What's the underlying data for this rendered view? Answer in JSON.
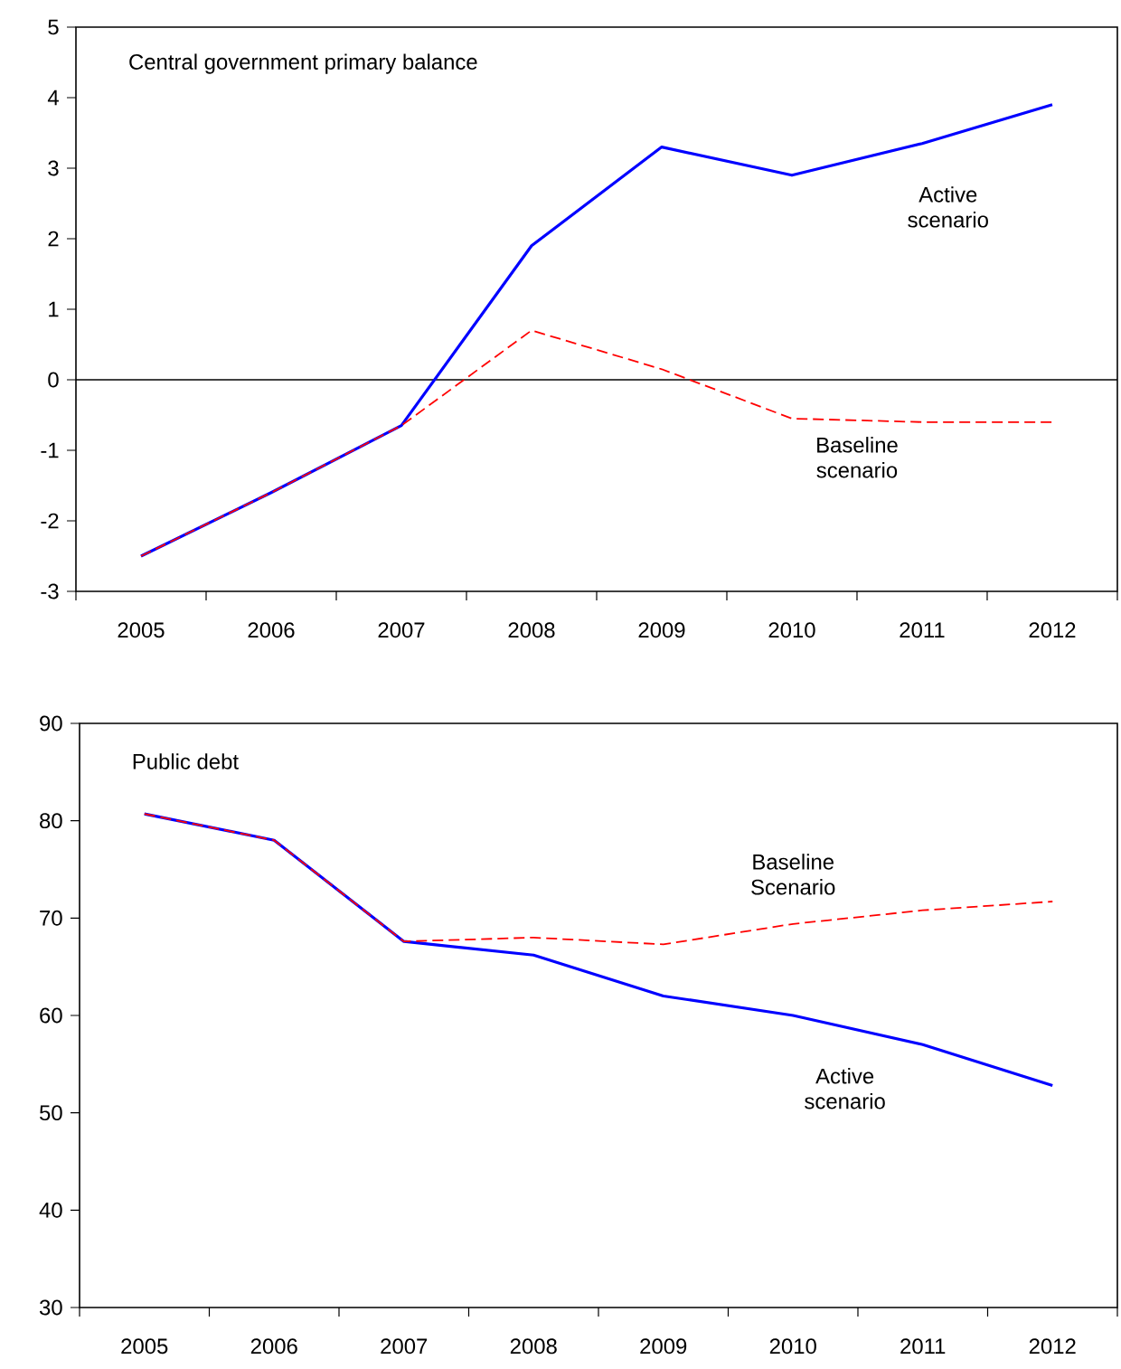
{
  "chart_data": [
    {
      "type": "line",
      "title": "Central government primary balance",
      "categories": [
        "2005",
        "2006",
        "2007",
        "2008",
        "2009",
        "2010",
        "2011",
        "2012"
      ],
      "ylim": [
        -3,
        5
      ],
      "yticks": [
        -3,
        -2,
        -1,
        0,
        1,
        2,
        3,
        4,
        5
      ],
      "grid": false,
      "ref_lines": [
        {
          "axis": "y",
          "value": 0,
          "color": "#000000"
        }
      ],
      "series": [
        {
          "name": "Active scenario",
          "color": "#0000ff",
          "line_style": "solid",
          "values": [
            -2.5,
            -1.6,
            -0.65,
            1.9,
            3.3,
            2.9,
            3.35,
            3.9
          ]
        },
        {
          "name": "Baseline scenario",
          "color": "#ff0000",
          "line_style": "dashed",
          "values": [
            -2.5,
            -1.6,
            -0.65,
            0.7,
            0.15,
            -0.55,
            -0.6,
            -0.6
          ]
        }
      ]
    },
    {
      "type": "line",
      "title": "Public debt",
      "categories": [
        "2005",
        "2006",
        "2007",
        "2008",
        "2009",
        "2010",
        "2011",
        "2012"
      ],
      "ylim": [
        30,
        90
      ],
      "yticks": [
        30,
        40,
        50,
        60,
        70,
        80,
        90
      ],
      "grid": false,
      "series": [
        {
          "name": "Active scenario",
          "color": "#0000ff",
          "line_style": "solid",
          "values": [
            80.7,
            78,
            67.6,
            66.2,
            62,
            60,
            57,
            52.8
          ]
        },
        {
          "name": "Baseline Scenario",
          "color": "#ff0000",
          "line_style": "dashed",
          "values": [
            80.7,
            78,
            67.6,
            68,
            67.3,
            69.4,
            70.8,
            71.7
          ]
        }
      ]
    }
  ]
}
